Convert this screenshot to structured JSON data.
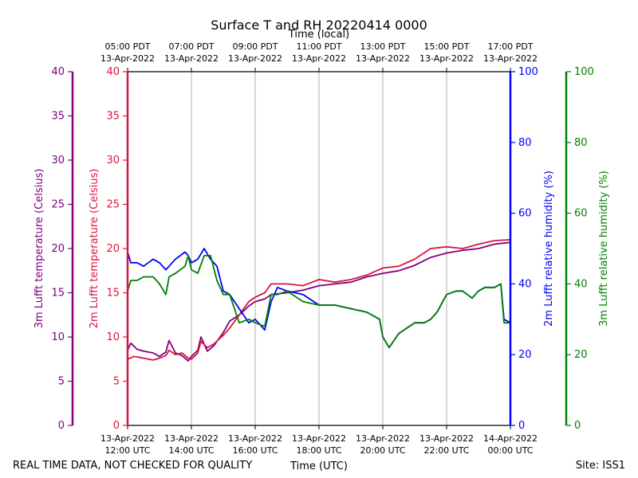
{
  "chart_data": {
    "type": "line",
    "title": "Surface T and RH 20220414 0000",
    "top_axis_title": "Time (local)",
    "xlabel": "Time (UTC)",
    "footer_left": "REAL TIME DATA, NOT CHECKED FOR QUALITY",
    "footer_right": "Site: ISS1",
    "x_range_hours": [
      12,
      24
    ],
    "x_ticks": [
      12,
      14,
      16,
      18,
      20,
      22,
      24
    ],
    "x_tick_labels_utc": [
      [
        "13-Apr-2022",
        "12:00 UTC"
      ],
      [
        "13-Apr-2022",
        "14:00 UTC"
      ],
      [
        "13-Apr-2022",
        "16:00 UTC"
      ],
      [
        "13-Apr-2022",
        "18:00 UTC"
      ],
      [
        "13-Apr-2022",
        "20:00 UTC"
      ],
      [
        "13-Apr-2022",
        "22:00 UTC"
      ],
      [
        "14-Apr-2022",
        "00:00 UTC"
      ]
    ],
    "x_tick_labels_local": [
      [
        "05:00 PDT",
        "13-Apr-2022"
      ],
      [
        "07:00 PDT",
        "13-Apr-2022"
      ],
      [
        "09:00 PDT",
        "13-Apr-2022"
      ],
      [
        "11:00 PDT",
        "13-Apr-2022"
      ],
      [
        "13:00 PDT",
        "13-Apr-2022"
      ],
      [
        "15:00 PDT",
        "13-Apr-2022"
      ],
      [
        "17:00 PDT",
        "13-Apr-2022"
      ]
    ],
    "axes": [
      {
        "id": "t3",
        "label": "3m Lufft temperature (Celsius)",
        "color": "#800080",
        "range": [
          0,
          40
        ],
        "ticks": [
          0,
          5,
          10,
          15,
          20,
          25,
          30,
          35,
          40
        ]
      },
      {
        "id": "t2",
        "label": "2m Lufft temperature (Celsius)",
        "color": "#dc143c",
        "range": [
          0,
          40
        ],
        "ticks": [
          0,
          5,
          10,
          15,
          20,
          25,
          30,
          35,
          40
        ]
      },
      {
        "id": "rh2",
        "label": "2m Lufft relative humidity (%)",
        "color": "#0000ff",
        "range": [
          0,
          100
        ],
        "ticks": [
          0,
          20,
          40,
          60,
          80,
          100
        ]
      },
      {
        "id": "rh3",
        "label": "3m Lufft relative humidity (%)",
        "color": "#008000",
        "range": [
          0,
          100
        ],
        "ticks": [
          0,
          20,
          40,
          60,
          80,
          100
        ]
      }
    ],
    "series": [
      {
        "name": "3m Lufft temperature",
        "axis": "t3",
        "color": "#800080",
        "x": [
          12.0,
          12.1,
          12.3,
          12.5,
          12.8,
          13.0,
          13.2,
          13.3,
          13.5,
          13.7,
          13.9,
          14.0,
          14.2,
          14.3,
          14.5,
          14.7,
          15.0,
          15.2,
          15.5,
          15.8,
          16.0,
          16.3,
          16.5,
          17.0,
          17.5,
          18.0,
          18.5,
          19.0,
          19.5,
          20.0,
          20.5,
          21.0,
          21.5,
          22.0,
          22.5,
          23.0,
          23.5,
          24.0
        ],
        "y": [
          8.5,
          9.3,
          8.6,
          8.4,
          8.2,
          7.8,
          8.3,
          9.6,
          8.2,
          7.9,
          7.3,
          7.8,
          8.5,
          10.0,
          8.4,
          9.0,
          10.5,
          11.8,
          12.5,
          13.5,
          14.0,
          14.3,
          14.8,
          15.0,
          15.3,
          15.8,
          16.0,
          16.2,
          16.8,
          17.2,
          17.5,
          18.1,
          19.0,
          19.5,
          19.8,
          20.0,
          20.5,
          20.7
        ]
      },
      {
        "name": "2m Lufft temperature",
        "axis": "t2",
        "color": "#dc143c",
        "x": [
          12.0,
          12.2,
          12.5,
          12.8,
          13.0,
          13.2,
          13.3,
          13.5,
          13.7,
          13.9,
          14.0,
          14.2,
          14.3,
          14.5,
          14.7,
          15.0,
          15.2,
          15.5,
          15.8,
          16.0,
          16.3,
          16.5,
          17.0,
          17.5,
          18.0,
          18.5,
          19.0,
          19.5,
          20.0,
          20.5,
          21.0,
          21.5,
          22.0,
          22.5,
          23.0,
          23.5,
          24.0
        ],
        "y": [
          7.5,
          7.8,
          7.6,
          7.4,
          7.6,
          7.9,
          8.5,
          8.0,
          8.2,
          7.6,
          7.5,
          8.2,
          9.5,
          8.8,
          9.2,
          10.2,
          11.0,
          12.5,
          14.0,
          14.5,
          15.0,
          16.0,
          16.0,
          15.8,
          16.5,
          16.2,
          16.5,
          17.0,
          17.8,
          18.0,
          18.8,
          20.0,
          20.2,
          20.0,
          20.5,
          20.9,
          21.0
        ]
      },
      {
        "name": "2m Lufft relative humidity",
        "axis": "rh2",
        "color": "#0000ff",
        "x": [
          12.0,
          12.1,
          12.3,
          12.5,
          12.8,
          13.0,
          13.2,
          13.3,
          13.5,
          13.8,
          13.9,
          14.0,
          14.2,
          14.4,
          14.6,
          14.8,
          15.0,
          15.2,
          15.5,
          15.8,
          16.0,
          16.3,
          16.5,
          16.7,
          17.0,
          17.5,
          18.0,
          18.5,
          19.0,
          19.5,
          19.9,
          20.0,
          20.2,
          20.5,
          21.0,
          21.3,
          21.5,
          21.7,
          22.0,
          22.3,
          22.5,
          22.8,
          23.0,
          23.2,
          23.5,
          23.7,
          23.8,
          24.0
        ],
        "y": [
          49,
          46,
          46,
          45,
          47,
          46,
          44,
          45,
          47,
          49,
          48,
          46,
          47,
          50,
          47,
          45,
          38,
          37,
          33,
          29,
          30,
          27,
          35,
          39,
          38,
          37,
          34,
          34,
          33,
          32,
          30,
          25,
          22,
          26,
          29,
          29,
          30,
          32,
          37,
          38,
          38,
          36,
          38,
          39,
          39,
          40,
          30,
          29
        ]
      },
      {
        "name": "3m Lufft relative humidity",
        "axis": "rh3",
        "color": "#008000",
        "x": [
          12.0,
          12.1,
          12.3,
          12.5,
          12.8,
          13.0,
          13.2,
          13.3,
          13.5,
          13.8,
          13.9,
          14.0,
          14.2,
          14.4,
          14.5,
          14.6,
          14.8,
          15.0,
          15.2,
          15.5,
          15.8,
          16.0,
          16.3,
          16.5,
          16.7,
          17.0,
          17.5,
          18.0,
          18.5,
          19.0,
          19.5,
          19.9,
          20.0,
          20.2,
          20.5,
          21.0,
          21.3,
          21.5,
          21.7,
          22.0,
          22.3,
          22.5,
          22.8,
          23.0,
          23.2,
          23.5,
          23.7,
          23.8,
          24.0
        ],
        "y": [
          38,
          41,
          41,
          42,
          42,
          40,
          37,
          42,
          43,
          45,
          48,
          44,
          43,
          48,
          48,
          48,
          41,
          37,
          37,
          29,
          30,
          29,
          28,
          37,
          37,
          38,
          35,
          34,
          34,
          33,
          32,
          30,
          25,
          22,
          26,
          29,
          29,
          30,
          32,
          37,
          38,
          38,
          36,
          38,
          39,
          39,
          40,
          29,
          29
        ]
      }
    ]
  }
}
